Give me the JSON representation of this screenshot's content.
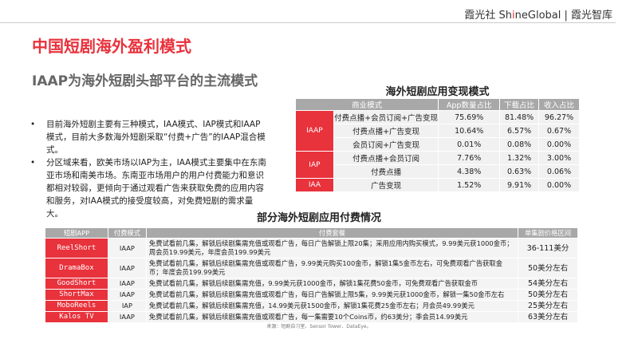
{
  "header": {
    "brand_pre": "霞光社 Sh",
    "brand_i": "i",
    "brand_post": "neGlobal | 霞光智库"
  },
  "title": "中国短剧海外盈利模式",
  "subtitle": "IAAP为海外短剧头部平台的主流模式",
  "bullets": [
    "目前海外短剧主要有三种模式，IAA模式、IAP模式和IAAP模式，目前大多数海外短剧采取“付费+广告”的IAAP混合模式。",
    "分区域来看，欧美市场以IAP为主，IAA模式主要集中在东南亚市场和南美市场。东南亚市场用户的用户付费能力和意识都相对较弱，更倾向于通过观看广告来获取免费的应用内容和服务，对IAA模式的接受度较高，对免费短剧的需求量大。"
  ],
  "table1": {
    "title": "海外短剧应用变现模式",
    "headers": [
      "商业模式",
      "App数量占比",
      "下载占比",
      "收入占比"
    ],
    "groups": [
      "IAAP",
      "IAP",
      "IAA"
    ],
    "rows": [
      [
        "付费点播+会员订阅+广告变现",
        "75.69%",
        "81.48%",
        "96.27%"
      ],
      [
        "付费点播+广告变现",
        "10.64%",
        "6.57%",
        "0.67%"
      ],
      [
        "会员订阅+广告变现",
        "0.01%",
        "0.08%",
        "0.00%"
      ],
      [
        "付费点播+会员订阅",
        "7.76%",
        "1.32%",
        "3.00%"
      ],
      [
        "付费点播",
        "4.38%",
        "0.63%",
        "0.06%"
      ],
      [
        "广告变现",
        "1.52%",
        "9.91%",
        "0.00%"
      ]
    ]
  },
  "table2": {
    "title": "部分海外短剧应用付费情况",
    "headers": [
      "短剧APP",
      "付费模式",
      "付费套餐",
      "单集剧价格区间"
    ],
    "rows": [
      [
        "ReelShort",
        "IAAP",
        "免费试看前几集，解锁后续剧集需充值或观看广告，每日广告解锁上限20集；采用应用内购买模式，9.99美元获1000金币；周会员19.99美元，年度会员199.99美元",
        "36-111美分"
      ],
      [
        "DramaBox",
        "IAAP",
        "免费试看前几集，解锁后续剧集需充值或观看广告，9.99美元购买100金币，解锁1集5金币左右，可免费观看广告获取金币；年度会员199.99美元",
        "50美分左右"
      ],
      [
        "GoodShort",
        "IAAP",
        "免费试看前几集，解锁后续剧集需充值，9.99美元获1000金币，解锁1集花费50金币，可免费观看广告获取金币",
        "54美分左右"
      ],
      [
        "ShortMax",
        "IAAP",
        "免费试看前几集，解锁后续剧集需充值或观看广告，每日广告解锁上限5集，9.99美元获1000金币，解锁一集50金币左右",
        "50美分左右"
      ],
      [
        "MoboReels",
        "IAP",
        "免费试看前几集，解锁后续剧集需充值，14.99美元获1500金币，解锁1集花费25金币左右；月会员49.99美元",
        "25美分左右"
      ],
      [
        "Kalos TV",
        "IAAP",
        "免费试看前几集，解锁后续剧集需充值或观看广告，每一集需要10个Coins币，约63美分；季会员14.99美元",
        "63美分左右"
      ]
    ]
  },
  "source": "来源：短剧自习室、Sensor Tower、DataEye。",
  "colors": {
    "accent": "#e8323c",
    "header_gray": "#a8a8a8"
  }
}
